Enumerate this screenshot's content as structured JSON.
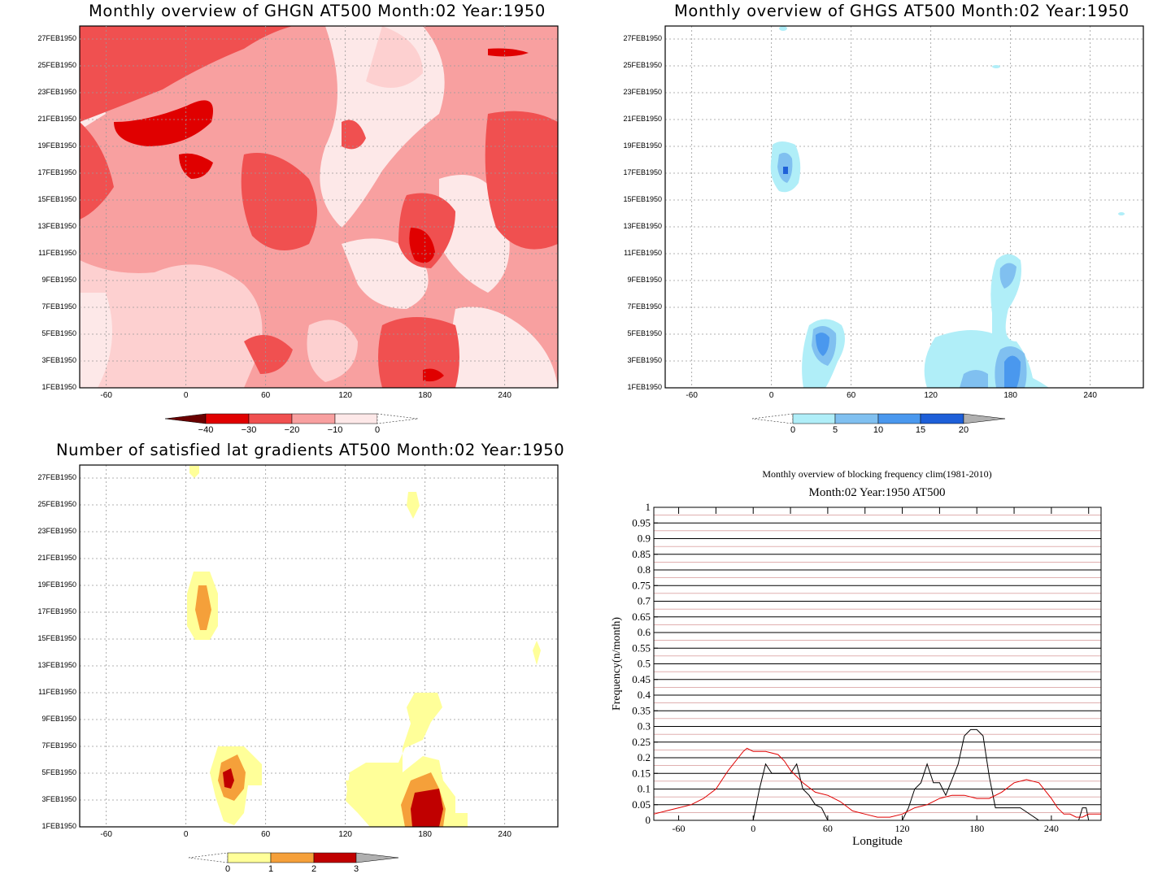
{
  "panels": {
    "ghgn": {
      "title": "Monthly overview of GHGN AT500 Month:02 Year:1950",
      "colorbar": {
        "labels": [
          "−40",
          "−30",
          "−20",
          "−10",
          "0"
        ],
        "colors": [
          "#6a0000",
          "#e00000",
          "#f05050",
          "#f8a0a0",
          "#fde8e8"
        ]
      }
    },
    "ghgs": {
      "title": "Monthly overview of GHGS AT500 Month:02 Year:1950",
      "colorbar": {
        "labels": [
          "0",
          "5",
          "10",
          "15",
          "20"
        ],
        "colors": [
          "#b0eef8",
          "#80c0f0",
          "#4a98ee",
          "#1e5fd8",
          "#b0b0b0"
        ]
      }
    },
    "nsat": {
      "title": "Number of satisfied lat gradients AT500 Month:02 Year:1950",
      "colorbar": {
        "labels": [
          "0",
          "1",
          "2",
          "3"
        ],
        "colors": [
          "#ffff99",
          "#f5a03a",
          "#c00000",
          "#b0b0b0"
        ]
      }
    },
    "freq": {
      "title_line1": "Monthly overview of blocking frequency clim(1981-2010)",
      "title_line2": "Month:02 Year:1950  AT500"
    }
  },
  "shared_axes": {
    "y_dates": [
      "1FEB1950",
      "3FEB1950",
      "5FEB1950",
      "7FEB1950",
      "9FEB1950",
      "11FEB1950",
      "13FEB1950",
      "15FEB1950",
      "17FEB1950",
      "19FEB1950",
      "21FEB1950",
      "23FEB1950",
      "25FEB1950",
      "27FEB1950"
    ],
    "x_lon": [
      "-60",
      "0",
      "60",
      "120",
      "180",
      "240"
    ]
  },
  "chart_data": [
    {
      "type": "heatmap",
      "title": "Monthly overview of GHGN AT500 Month:02 Year:1950",
      "x_ticks": [
        -60,
        0,
        60,
        120,
        180,
        240
      ],
      "y_ticks": [
        "1FEB1950",
        "3FEB1950",
        "5FEB1950",
        "7FEB1950",
        "9FEB1950",
        "11FEB1950",
        "13FEB1950",
        "15FEB1950",
        "17FEB1950",
        "19FEB1950",
        "21FEB1950",
        "23FEB1950",
        "25FEB1950",
        "27FEB1950"
      ],
      "xlim": [
        -80,
        280
      ],
      "levels": [
        -40,
        -30,
        -20,
        -10,
        0
      ]
    },
    {
      "type": "heatmap",
      "title": "Monthly overview of GHGS AT500 Month:02 Year:1950",
      "x_ticks": [
        -60,
        0,
        60,
        120,
        180,
        240
      ],
      "y_ticks": [
        "1FEB1950",
        "3FEB1950",
        "5FEB1950",
        "7FEB1950",
        "9FEB1950",
        "11FEB1950",
        "13FEB1950",
        "15FEB1950",
        "17FEB1950",
        "19FEB1950",
        "21FEB1950",
        "23FEB1950",
        "25FEB1950",
        "27FEB1950"
      ],
      "xlim": [
        -80,
        280
      ],
      "levels": [
        0,
        5,
        10,
        15,
        20
      ]
    },
    {
      "type": "heatmap",
      "title": "Number of satisfied lat gradients AT500 Month:02 Year:1950",
      "x_ticks": [
        -60,
        0,
        60,
        120,
        180,
        240
      ],
      "y_ticks": [
        "1FEB1950",
        "3FEB1950",
        "5FEB1950",
        "7FEB1950",
        "9FEB1950",
        "11FEB1950",
        "13FEB1950",
        "15FEB1950",
        "17FEB1950",
        "19FEB1950",
        "21FEB1950",
        "23FEB1950",
        "25FEB1950",
        "27FEB1950"
      ],
      "xlim": [
        -80,
        280
      ],
      "levels": [
        0,
        1,
        2,
        3
      ]
    },
    {
      "type": "line",
      "title": "Monthly overview of blocking frequency clim(1981-2010)",
      "subtitle": "Month:02 Year:1950  AT500",
      "xlabel": "Longitude",
      "ylabel": "Frequency(n/month)",
      "xlim": [
        -80,
        280
      ],
      "ylim": [
        0,
        1
      ],
      "x_ticks": [
        -60,
        0,
        60,
        120,
        180,
        240
      ],
      "y_ticks": [
        "0",
        "0.05",
        "0.1",
        "0.15",
        "0.2",
        "0.25",
        "0.3",
        "0.35",
        "0.4",
        "0.45",
        "0.5",
        "0.55",
        "0.6",
        "0.65",
        "0.7",
        "0.75",
        "0.8",
        "0.85",
        "0.9",
        "0.95",
        "1"
      ],
      "series": [
        {
          "color": "#000000",
          "x": [
            -80,
            0,
            5,
            10,
            15,
            20,
            25,
            30,
            35,
            40,
            45,
            50,
            55,
            60,
            80,
            120,
            125,
            130,
            135,
            140,
            145,
            150,
            155,
            160,
            165,
            170,
            175,
            180,
            185,
            190,
            195,
            200,
            215,
            230,
            250,
            262,
            265,
            268,
            270,
            280
          ],
          "y": [
            0,
            0,
            0.1,
            0.18,
            0.15,
            0.15,
            0.15,
            0.15,
            0.18,
            0.1,
            0.08,
            0.05,
            0.04,
            0,
            0,
            0,
            0.04,
            0.1,
            0.12,
            0.18,
            0.12,
            0.12,
            0.08,
            0.13,
            0.18,
            0.27,
            0.29,
            0.29,
            0.27,
            0.14,
            0.04,
            0.04,
            0.04,
            0,
            0,
            0,
            0.04,
            0.04,
            0,
            0
          ]
        },
        {
          "color": "#e00000",
          "x": [
            -80,
            -70,
            -60,
            -50,
            -40,
            -30,
            -20,
            -12,
            -8,
            -5,
            0,
            5,
            10,
            20,
            25,
            30,
            40,
            50,
            60,
            70,
            80,
            90,
            100,
            110,
            120,
            130,
            140,
            150,
            160,
            170,
            180,
            190,
            200,
            210,
            220,
            230,
            240,
            245,
            250,
            255,
            260,
            265,
            270,
            280
          ],
          "y": [
            0.02,
            0.03,
            0.04,
            0.05,
            0.07,
            0.1,
            0.16,
            0.2,
            0.22,
            0.23,
            0.22,
            0.22,
            0.22,
            0.21,
            0.19,
            0.16,
            0.12,
            0.09,
            0.08,
            0.06,
            0.03,
            0.02,
            0.01,
            0.01,
            0.02,
            0.04,
            0.05,
            0.07,
            0.08,
            0.08,
            0.07,
            0.07,
            0.09,
            0.12,
            0.13,
            0.12,
            0.07,
            0.04,
            0.02,
            0.02,
            0.01,
            0.01,
            0.02,
            0.02
          ]
        }
      ]
    }
  ]
}
